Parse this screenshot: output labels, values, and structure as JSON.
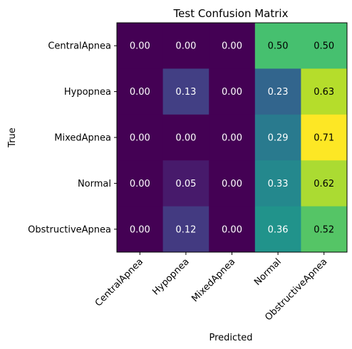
{
  "chart_data": {
    "type": "heatmap",
    "title": "Test Confusion Matrix",
    "xlabel": "Predicted",
    "ylabel": "True",
    "x_categories": [
      "CentralApnea",
      "Hypopnea",
      "MixedApnea",
      "Normal",
      "ObstructiveApnea"
    ],
    "y_categories": [
      "CentralApnea",
      "Hypopnea",
      "MixedApnea",
      "Normal",
      "ObstructiveApnea"
    ],
    "values": [
      [
        0.0,
        0.0,
        0.0,
        0.5,
        0.5
      ],
      [
        0.0,
        0.13,
        0.0,
        0.23,
        0.63
      ],
      [
        0.0,
        0.0,
        0.0,
        0.29,
        0.71
      ],
      [
        0.0,
        0.05,
        0.0,
        0.33,
        0.62
      ],
      [
        0.0,
        0.12,
        0.0,
        0.36,
        0.52
      ]
    ],
    "value_labels": [
      [
        "0.00",
        "0.00",
        "0.00",
        "0.50",
        "0.50"
      ],
      [
        "0.00",
        "0.13",
        "0.00",
        "0.23",
        "0.63"
      ],
      [
        "0.00",
        "0.00",
        "0.00",
        "0.29",
        "0.71"
      ],
      [
        "0.00",
        "0.05",
        "0.00",
        "0.33",
        "0.62"
      ],
      [
        "0.00",
        "0.12",
        "0.00",
        "0.36",
        "0.52"
      ]
    ],
    "color_range": [
      0.0,
      0.71
    ],
    "colormap": "viridis",
    "grid": false
  }
}
